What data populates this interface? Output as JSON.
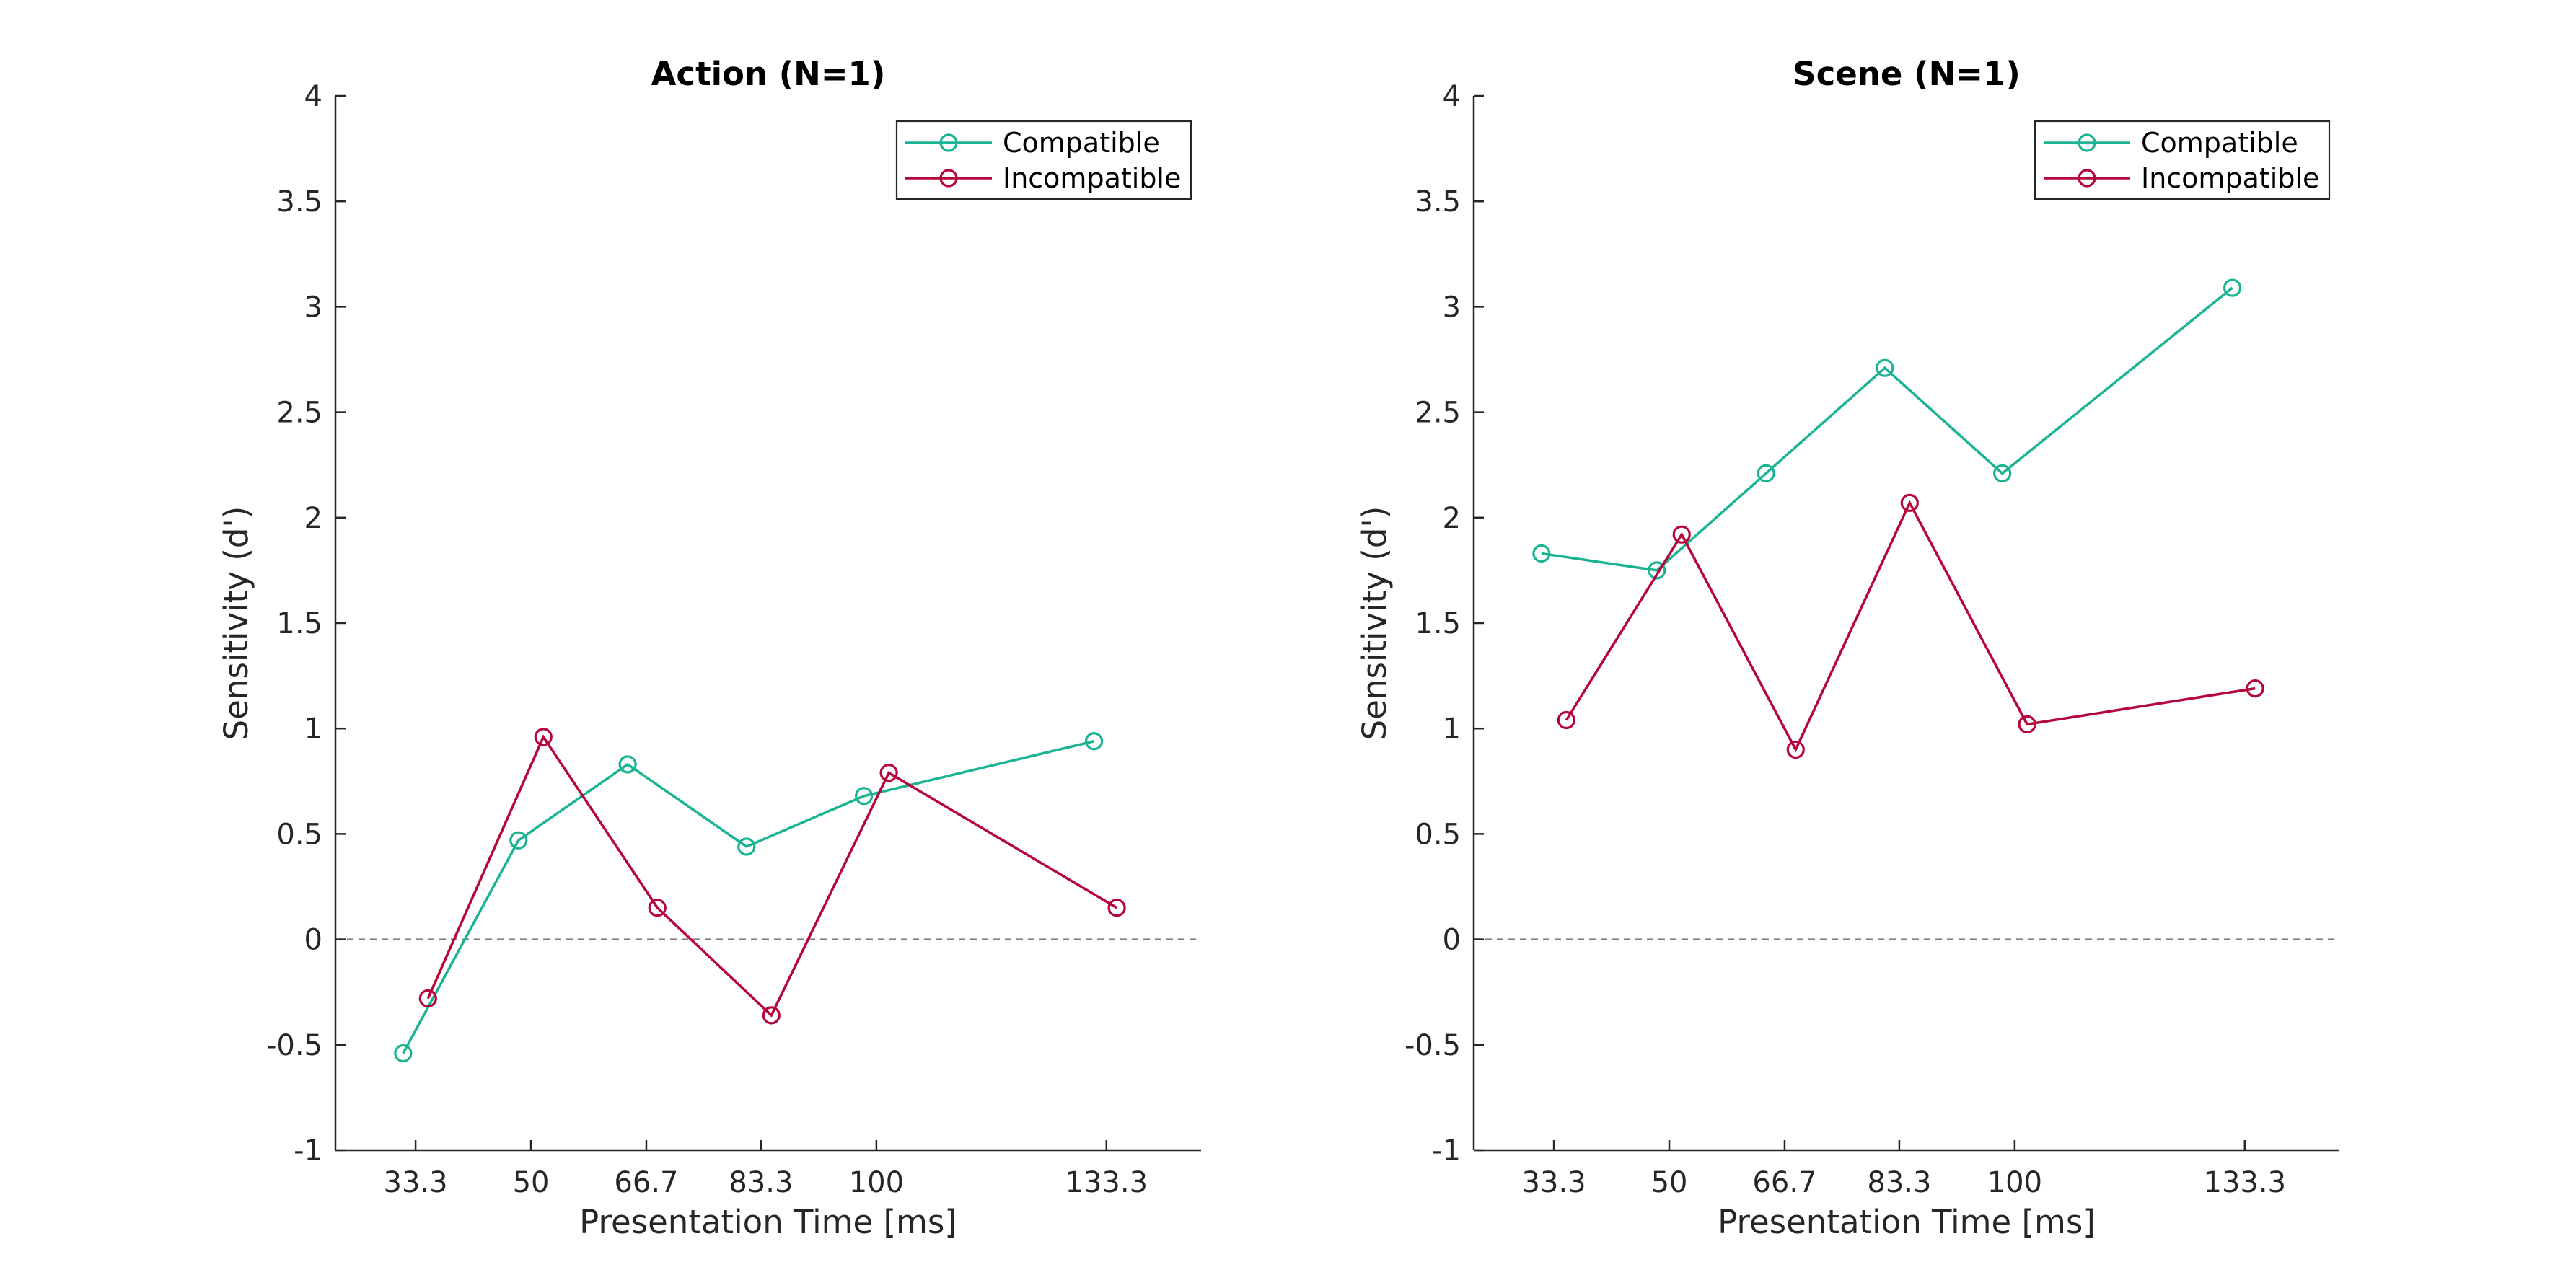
{
  "chart_data": [
    {
      "type": "line",
      "title": "Action (N=1)",
      "xlabel": "Presentation Time [ms]",
      "ylabel": "Sensitivity (d')",
      "xticks": [
        33.3,
        50,
        66.7,
        83.3,
        100,
        133.3
      ],
      "xtick_labels": [
        "33.3",
        "50",
        "66.7",
        "83.3",
        "100",
        "133.3"
      ],
      "yticks": [
        -1,
        -0.5,
        0,
        0.5,
        1,
        1.5,
        2,
        2.5,
        3,
        3.5,
        4
      ],
      "ytick_labels": [
        "-1",
        "-0.5",
        "0",
        "0.5",
        "1",
        "1.5",
        "2",
        "2.5",
        "3",
        "3.5",
        "4"
      ],
      "xlim": [
        21.7,
        147
      ],
      "ylim": [
        -1,
        4
      ],
      "reference_line_y": 0,
      "legend_position": "top-right",
      "series": [
        {
          "name": "Compatible",
          "color": "#1ab394",
          "x": [
            31.5,
            48.2,
            64.0,
            81.2,
            98.2,
            131.5
          ],
          "y": [
            -0.54,
            0.47,
            0.83,
            0.44,
            0.68,
            0.94
          ]
        },
        {
          "name": "Incompatible",
          "color": "#b5053a",
          "x": [
            35.1,
            51.8,
            68.3,
            84.8,
            101.8,
            134.8
          ],
          "y": [
            -0.28,
            0.96,
            0.15,
            -0.36,
            0.79,
            0.15
          ]
        }
      ]
    },
    {
      "type": "line",
      "title": "Scene (N=1)",
      "xlabel": "Presentation Time [ms]",
      "ylabel": "Sensitivity (d')",
      "xticks": [
        33.3,
        50,
        66.7,
        83.3,
        100,
        133.3
      ],
      "xtick_labels": [
        "33.3",
        "50",
        "66.7",
        "83.3",
        "100",
        "133.3"
      ],
      "yticks": [
        -1,
        -0.5,
        0,
        0.5,
        1,
        1.5,
        2,
        2.5,
        3,
        3.5,
        4
      ],
      "ytick_labels": [
        "-1",
        "-0.5",
        "0",
        "0.5",
        "1",
        "1.5",
        "2",
        "2.5",
        "3",
        "3.5",
        "4"
      ],
      "xlim": [
        21.7,
        147
      ],
      "ylim": [
        -1,
        4
      ],
      "reference_line_y": 0,
      "legend_position": "top-right",
      "series": [
        {
          "name": "Compatible",
          "color": "#1ab394",
          "x": [
            31.5,
            48.2,
            64.0,
            81.2,
            98.2,
            131.5
          ],
          "y": [
            1.83,
            1.75,
            2.21,
            2.71,
            2.21,
            3.09
          ]
        },
        {
          "name": "Incompatible",
          "color": "#b5053a",
          "x": [
            35.1,
            51.8,
            68.3,
            84.8,
            101.8,
            134.8
          ],
          "y": [
            1.04,
            1.92,
            0.9,
            2.07,
            1.02,
            1.19
          ]
        }
      ]
    }
  ]
}
